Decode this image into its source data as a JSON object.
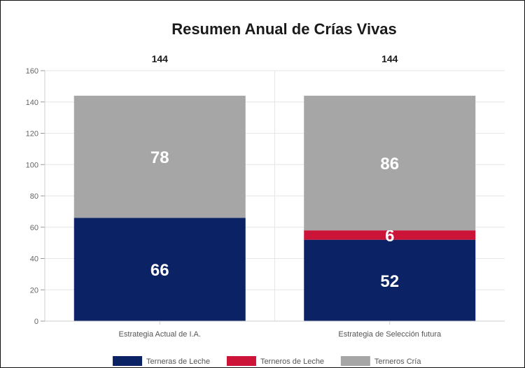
{
  "chart_data": {
    "type": "bar",
    "stacked": true,
    "title": "Resumen Anual de Crías Vivas",
    "categories": [
      "Estrategia Actual de I.A.",
      "Estrategia de Selección futura"
    ],
    "totals": [
      "144",
      "144"
    ],
    "series": [
      {
        "name": "Terneras de Leche",
        "color": "#0b2364",
        "values": [
          66,
          52
        ]
      },
      {
        "name": "Terneros de Leche",
        "color": "#cc1439",
        "values": [
          0,
          6
        ]
      },
      {
        "name": "Terneros Cría",
        "color": "#a6a6a6",
        "values": [
          78,
          86
        ]
      }
    ],
    "segment_label_colors": [
      "#0b2364",
      "#cc1439",
      "#cc1439"
    ],
    "ylim": [
      0,
      160
    ],
    "yticks": [
      0,
      20,
      40,
      60,
      80,
      100,
      120,
      140,
      160
    ],
    "grid": true,
    "legend_position": "bottom"
  }
}
